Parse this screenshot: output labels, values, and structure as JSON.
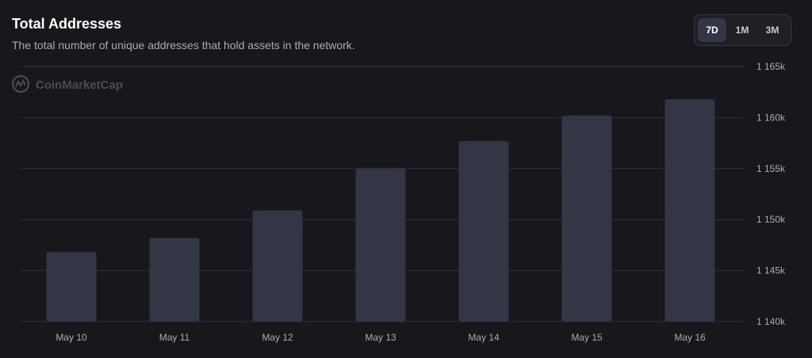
{
  "header": {
    "title": "Total Addresses",
    "subtitle": "The total number of unique addresses that hold assets in the network."
  },
  "range": {
    "options": [
      "7D",
      "1M",
      "3M"
    ],
    "selected": "7D"
  },
  "watermark": {
    "text": "CoinMarketCap"
  },
  "colors": {
    "background": "#18171b",
    "bar": "#333645",
    "gridline": "#2e3040"
  },
  "chart_data": {
    "type": "bar",
    "categories": [
      "May 10",
      "May 11",
      "May 12",
      "May 13",
      "May 14",
      "May 15",
      "May 16"
    ],
    "values": [
      1146800,
      1148200,
      1150900,
      1155000,
      1157700,
      1160200,
      1161800
    ],
    "ylim": [
      1140000,
      1165000
    ],
    "yticks": [
      1140000,
      1145000,
      1150000,
      1155000,
      1160000,
      1165000
    ],
    "ytick_labels": [
      "1 140k",
      "1 145k",
      "1 150k",
      "1 155k",
      "1 160k",
      "1 165k"
    ],
    "grid": true,
    "y_axis_position": "right"
  }
}
